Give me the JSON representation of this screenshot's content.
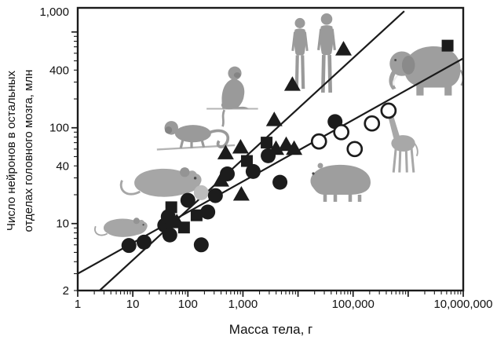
{
  "chart_data": {
    "type": "scatter",
    "title": "",
    "xlabel": "Масса тела, г",
    "ylabel_line1": "Число нейронов в остальных",
    "ylabel_line2": "отделах головного мозга, млн",
    "x_axis": {
      "scale": "log",
      "range": [
        1,
        10000000
      ],
      "tick_labels": [
        "1",
        "10",
        "100",
        "1,000",
        "100,000",
        "10,000,000"
      ],
      "tick_values": [
        1,
        10,
        100,
        1000,
        100000,
        10000000
      ]
    },
    "y_axis": {
      "scale": "log",
      "range": [
        2,
        1600
      ],
      "tick_labels": [
        "1,000",
        "400",
        "100",
        "40",
        "10",
        "2"
      ],
      "tick_values": [
        1000,
        400,
        100,
        40,
        10,
        2
      ]
    },
    "grid": "off",
    "legend": "none",
    "series": [
      {
        "name": "gray_circle",
        "marker": "circle",
        "color": "#bdbdbd",
        "points": [
          [
            175,
            21
          ]
        ]
      },
      {
        "name": "filled_circles",
        "marker": "circle",
        "color": "#1c1c1c",
        "points": [
          [
            8.5,
            5.9
          ],
          [
            16,
            6.4
          ],
          [
            38,
            9.6
          ],
          [
            47,
            7.6
          ],
          [
            175,
            6.0
          ],
          [
            44,
            11.8
          ],
          [
            100,
            17.5
          ],
          [
            230,
            13.2
          ],
          [
            316,
            19.6
          ],
          [
            520,
            33
          ],
          [
            1530,
            35
          ],
          [
            2870,
            51
          ],
          [
            4700,
            27
          ],
          [
            47000,
            116
          ]
        ]
      },
      {
        "name": "filled_triangles",
        "marker": "triangle",
        "color": "#1c1c1c",
        "points": [
          [
            63,
            10.3
          ],
          [
            400,
            28
          ],
          [
            485,
            54
          ],
          [
            905,
            62
          ],
          [
            935,
            20
          ],
          [
            3700,
            120
          ],
          [
            3980,
            60
          ],
          [
            6100,
            66
          ],
          [
            8500,
            60
          ],
          [
            7900,
            280
          ],
          [
            67000,
            655
          ]
        ]
      },
      {
        "name": "filled_squares",
        "marker": "square",
        "color": "#1c1c1c",
        "points": [
          [
            50,
            14.8
          ],
          [
            85,
            9.1
          ],
          [
            144,
            12.2
          ],
          [
            1180,
            45
          ],
          [
            2690,
            70
          ],
          [
            5200000,
            720
          ]
        ]
      },
      {
        "name": "open_circles",
        "marker": "open-circle",
        "color": "#1c1c1c",
        "points": [
          [
            24000,
            72
          ],
          [
            61000,
            90
          ],
          [
            107000,
            60
          ],
          [
            220000,
            111
          ],
          [
            440000,
            151
          ]
        ]
      }
    ],
    "trend_lines": [
      {
        "name": "steep",
        "x1": 2.5,
        "y1": 2,
        "x2": 850000,
        "y2": 1650
      },
      {
        "name": "shallow",
        "x1": 1,
        "y1": 3.0,
        "x2": 10000000,
        "y2": 530
      }
    ],
    "animals": [
      {
        "name": "mouse",
        "ref": "sil-rodent",
        "x": 128,
        "y": 272,
        "s": 0.62
      },
      {
        "name": "rat",
        "ref": "sil-rodent",
        "x": 165,
        "y": 205,
        "s": 0.95
      },
      {
        "name": "capuchin-monkey",
        "ref": "sil-monkey-walk",
        "x": 198,
        "y": 138,
        "s": 0.92
      },
      {
        "name": "macaque-monkey",
        "ref": "sil-monkey-sit",
        "x": 260,
        "y": 80,
        "s": 0.78
      },
      {
        "name": "humans",
        "ref": "sil-humans",
        "x": 366,
        "y": 12,
        "s": 1
      },
      {
        "name": "capybara",
        "ref": "sil-capybara",
        "x": 386,
        "y": 202,
        "s": 1
      },
      {
        "name": "giraffe",
        "ref": "sil-giraffe",
        "x": 486,
        "y": 136,
        "s": 0.95
      },
      {
        "name": "elephant",
        "ref": "sil-elephant",
        "x": 488,
        "y": 48,
        "s": 0.92
      }
    ]
  }
}
